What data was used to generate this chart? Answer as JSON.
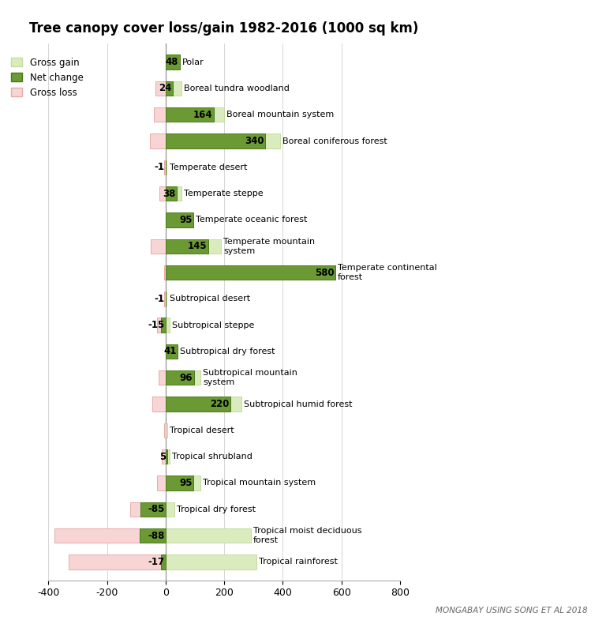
{
  "title": "Tree canopy cover loss/gain 1982-2016 (1000 sq km)",
  "source": "MONGABAY USING SONG ET AL 2018",
  "biomes": [
    "Polar",
    "Boreal tundra woodland",
    "Boreal mountain system",
    "Boreal coniferous forest",
    "Temperate desert",
    "Temperate steppe",
    "Temperate oceanic forest",
    "Temperate mountain\nsystem",
    "Temperate continental\nforest",
    "Subtropical desert",
    "Subtropical steppe",
    "Subtropical dry forest",
    "Subtropical mountain\nsystem",
    "Subtropical humid forest",
    "Tropical desert",
    "Tropical shrubland",
    "Tropical mountain system",
    "Tropical dry forest",
    "Tropical moist deciduous\nforest",
    "Tropical rainforest"
  ],
  "net_change": [
    48,
    24,
    164,
    340,
    -1,
    38,
    95,
    145,
    580,
    -1,
    -15,
    41,
    96,
    220,
    0,
    5,
    95,
    -85,
    -88,
    -17
  ],
  "gross_gain": [
    48,
    55,
    200,
    390,
    3,
    55,
    95,
    190,
    580,
    3,
    15,
    41,
    120,
    260,
    5,
    15,
    120,
    30,
    290,
    310
  ],
  "gross_loss": [
    0,
    -35,
    -40,
    -55,
    -5,
    -20,
    0,
    -50,
    -5,
    -5,
    -30,
    0,
    -25,
    -45,
    -5,
    -12,
    -30,
    -120,
    -380,
    -330
  ],
  "color_net": "#6b9a35",
  "color_gain": "#daebbe",
  "color_loss": "#f8d5d5",
  "color_net_edge": "#4a7a18",
  "color_gain_edge": "#c5dca0",
  "color_loss_edge": "#e8aaaa",
  "xlim": [
    -400,
    800
  ],
  "xticks": [
    -400,
    -200,
    0,
    200,
    400,
    600,
    800
  ],
  "background": "#ffffff"
}
